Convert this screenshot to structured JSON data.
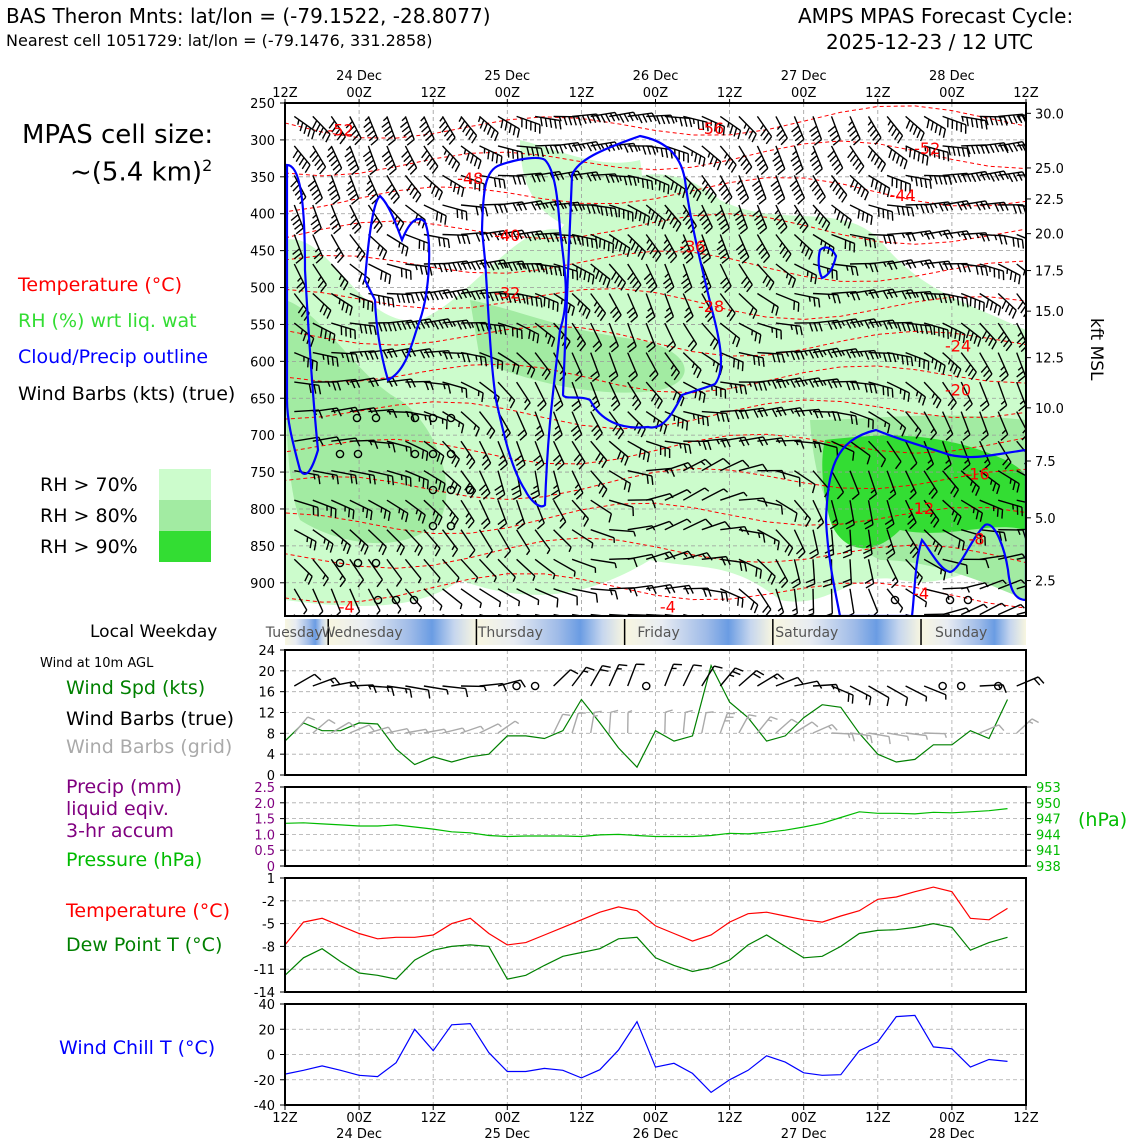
{
  "header": {
    "station_title": "BAS Theron Mnts: lat/lon = (-79.1522, -28.8077)",
    "nearest_cell": "Nearest cell 1051729: lat/lon = (-79.1476, 331.2858)",
    "cycle_title": "AMPS MPAS Forecast Cycle:",
    "cycle_time": "2025-12-23 / 12 UTC"
  },
  "cell_size": {
    "line1": "MPAS cell size:",
    "line2": "~(5.4 km)",
    "superscript": "2"
  },
  "legend": {
    "temperature": {
      "label": "Temperature (°C)",
      "color": "#ff0000"
    },
    "rh": {
      "label": "RH (%) wrt liq. wat",
      "color": "#33dd33"
    },
    "cloud": {
      "label": "Cloud/Precip outline",
      "color": "#0000ff"
    },
    "wind": {
      "label": "Wind Barbs (kts) (true)",
      "color": "#000000"
    },
    "rh_levels": [
      {
        "label": "RH > 70%",
        "color": "#ccfccc"
      },
      {
        "label": "RH > 80%",
        "color": "#a2eba2"
      },
      {
        "label": "RH > 90%",
        "color": "#33dd33"
      }
    ]
  },
  "time_axis": {
    "tick_labels": [
      "12Z",
      "00Z",
      "12Z",
      "00Z",
      "12Z",
      "00Z",
      "12Z",
      "00Z",
      "12Z",
      "00Z",
      "12Z"
    ],
    "tick_hours": [
      0,
      12,
      24,
      36,
      48,
      60,
      72,
      84,
      96,
      108,
      120
    ],
    "date_labels": [
      {
        "hour": 12,
        "label": "24 Dec"
      },
      {
        "hour": 36,
        "label": "25 Dec"
      },
      {
        "hour": 60,
        "label": "26 Dec"
      },
      {
        "hour": 84,
        "label": "27 Dec"
      },
      {
        "hour": 108,
        "label": "28 Dec"
      }
    ]
  },
  "weekday": {
    "label": "Local Weekday",
    "days": [
      "Tuesday",
      "Wednesday",
      "Thursday",
      "Friday",
      "Saturday",
      "Sunday"
    ],
    "day_center_hours": [
      1.5,
      12.5,
      36.5,
      60.5,
      84.5,
      109.5
    ],
    "separator_hours": [
      7,
      31,
      55,
      79,
      103
    ]
  },
  "cross_section": {
    "pressure_levels": [
      250,
      300,
      350,
      400,
      450,
      500,
      550,
      600,
      650,
      700,
      750,
      800,
      850,
      900
    ],
    "p_range": [
      250,
      945
    ],
    "height_labels": [
      {
        "p": 264,
        "label": "30.0"
      },
      {
        "p": 338,
        "label": "25.0"
      },
      {
        "p": 380,
        "label": "22.5"
      },
      {
        "p": 427,
        "label": "20.0"
      },
      {
        "p": 477,
        "label": "17.5"
      },
      {
        "p": 532,
        "label": "15.0"
      },
      {
        "p": 595,
        "label": "12.5"
      },
      {
        "p": 663,
        "label": "10.0"
      },
      {
        "p": 735,
        "label": "7.5"
      },
      {
        "p": 812,
        "label": "5.0"
      },
      {
        "p": 897,
        "label": "2.5"
      }
    ],
    "right_axis_label": "kft MSL",
    "temperature_labels": [
      {
        "h": 9,
        "p": 294,
        "label": "-52"
      },
      {
        "h": 30,
        "p": 360,
        "label": "-48"
      },
      {
        "h": 36,
        "p": 437,
        "label": "-40"
      },
      {
        "h": 36,
        "p": 515,
        "label": "-32"
      },
      {
        "h": 69,
        "p": 292,
        "label": "-56"
      },
      {
        "h": 66,
        "p": 452,
        "label": "-36"
      },
      {
        "h": 69,
        "p": 533,
        "label": "-28"
      },
      {
        "h": 104,
        "p": 319,
        "label": "-52"
      },
      {
        "h": 100,
        "p": 383,
        "label": "-44"
      },
      {
        "h": 109,
        "p": 587,
        "label": "-24"
      },
      {
        "h": 109,
        "p": 646,
        "label": "-20"
      },
      {
        "h": 112,
        "p": 760,
        "label": "-16"
      },
      {
        "h": 103,
        "p": 807,
        "label": "-12"
      },
      {
        "h": 112,
        "p": 848,
        "label": "-8"
      },
      {
        "h": 103,
        "p": 922,
        "label": "-4"
      },
      {
        "h": 10,
        "p": 940,
        "label": "-4"
      },
      {
        "h": 62,
        "p": 940,
        "label": "-4"
      }
    ]
  },
  "panel_wind": {
    "note": "Wind at 10m AGL",
    "labels": [
      {
        "text": "Wind Spd (kts)",
        "color": "#008000"
      },
      {
        "text": "Wind Barbs (true)",
        "color": "#000000"
      },
      {
        "text": "Wind Barbs (grid)",
        "color": "#aaaaaa"
      }
    ]
  },
  "panel_precip": {
    "labels": [
      {
        "text": "Precip (mm)",
        "color": "#800080"
      },
      {
        "text": "liquid eqiv.",
        "color": "#800080"
      },
      {
        "text": "3-hr accum",
        "color": "#800080"
      },
      {
        "text": "Pressure (hPa)",
        "color": "#00bb00"
      }
    ],
    "right_axis_label": "(hPa)"
  },
  "panel_temp": {
    "labels": [
      {
        "text": "Temperature (°C)",
        "color": "#ff0000"
      },
      {
        "text": "Dew Point T (°C)",
        "color": "#008000"
      }
    ]
  },
  "panel_chill": {
    "labels": [
      {
        "text": "Wind Chill T (°C)",
        "color": "#0000ff"
      }
    ]
  },
  "chart_data": [
    {
      "type": "line",
      "title": "Wind Spd (kts) at 10m AGL",
      "x_hours_step": 3,
      "ylim": [
        0,
        24
      ],
      "yticks": [
        0,
        4,
        8,
        12,
        16,
        20,
        24
      ],
      "series": [
        {
          "name": "Wind Spd (kts)",
          "color": "#008000",
          "values": [
            6.5,
            10,
            8.5,
            8.5,
            10,
            9.8,
            5,
            2,
            3.5,
            2.5,
            3.5,
            4,
            7.5,
            7.5,
            7,
            8.5,
            14.5,
            10,
            5.2,
            1.5,
            8.5,
            6.5,
            7.5,
            21,
            14,
            11,
            6.5,
            7.5,
            11,
            13.5,
            13,
            8,
            4,
            2.5,
            3,
            5.8,
            5.8,
            8.5,
            7,
            14.5
          ]
        }
      ],
      "calm_marker_hours": [
        39,
        58.5,
        108,
        116
      ]
    },
    {
      "type": "line",
      "title": "Precip (mm) / Pressure (hPa)",
      "x_hours_step": 3,
      "ylim": [
        0,
        2.5
      ],
      "yticks": [
        0,
        0.5,
        1.0,
        1.5,
        2.0,
        2.5
      ],
      "y2lim": [
        938,
        953
      ],
      "y2ticks": [
        938,
        941,
        944,
        947,
        950,
        953
      ],
      "series": [
        {
          "name": "Pressure (hPa)",
          "color": "#00bb00",
          "axis": "y2",
          "values": [
            946.1,
            946.2,
            946.0,
            945.8,
            945.6,
            945.6,
            945.8,
            945.4,
            945.0,
            944.5,
            944.3,
            943.8,
            943.6,
            943.7,
            943.7,
            943.7,
            943.6,
            943.9,
            944.0,
            943.8,
            943.6,
            943.6,
            943.6,
            943.8,
            944.2,
            944.1,
            944.4,
            944.8,
            945.4,
            946.1,
            947.2,
            948.3,
            948.0,
            948.0,
            947.9,
            948.2,
            948.1,
            948.3,
            948.5,
            948.9
          ]
        }
      ]
    },
    {
      "type": "line",
      "title": "Temperature / Dew Point (°C)",
      "x_hours_step": 3,
      "ylim": [
        -14,
        1
      ],
      "yticks": [
        -14,
        -11,
        -8,
        -5,
        -2,
        1
      ],
      "series": [
        {
          "name": "Temperature (°C)",
          "color": "#ff0000",
          "values": [
            -7.8,
            -4.8,
            -4.3,
            -5.3,
            -6.3,
            -7.0,
            -6.8,
            -6.8,
            -6.5,
            -5.0,
            -4.3,
            -6.3,
            -7.8,
            -7.5,
            -6.5,
            -5.5,
            -4.5,
            -3.5,
            -2.8,
            -3.3,
            -5.3,
            -6.3,
            -7.3,
            -6.5,
            -4.8,
            -3.7,
            -3.5,
            -4.0,
            -4.5,
            -4.8,
            -4.0,
            -3.3,
            -1.8,
            -1.5,
            -0.8,
            -0.2,
            -0.8,
            -4.3,
            -4.5,
            -3.0
          ]
        },
        {
          "name": "Dew Point T (°C)",
          "color": "#008000",
          "values": [
            -11.8,
            -9.5,
            -8.3,
            -10.0,
            -11.5,
            -11.8,
            -12.3,
            -9.8,
            -8.5,
            -8.0,
            -7.8,
            -8.0,
            -12.3,
            -11.8,
            -10.5,
            -9.3,
            -8.8,
            -8.3,
            -7.0,
            -6.8,
            -9.5,
            -10.5,
            -11.3,
            -10.8,
            -9.8,
            -7.8,
            -6.5,
            -8.0,
            -9.5,
            -9.3,
            -8.0,
            -6.3,
            -5.9,
            -5.8,
            -5.5,
            -5.0,
            -5.5,
            -8.5,
            -7.5,
            -6.8
          ]
        }
      ]
    },
    {
      "type": "line",
      "title": "Wind Chill T (°C)",
      "x_hours_step": 3,
      "ylim": [
        -40,
        40
      ],
      "yticks": [
        -40,
        -20,
        0,
        20,
        40
      ],
      "series": [
        {
          "name": "Wind Chill T (°C)",
          "color": "#0000ff",
          "values": [
            -15.5,
            -12.5,
            -9,
            -12.5,
            -16.5,
            -17.5,
            -6.5,
            20,
            3,
            23.5,
            24.5,
            1.5,
            -13.5,
            -13.5,
            -11,
            -12.5,
            -18.5,
            -12,
            3.5,
            26,
            -10,
            -7,
            -15,
            -30,
            -20,
            -12.5,
            -1,
            -6,
            -14.5,
            -16.5,
            -16,
            3,
            10,
            30,
            31,
            6,
            4.5,
            -10,
            -4,
            -5.5
          ]
        }
      ]
    }
  ]
}
